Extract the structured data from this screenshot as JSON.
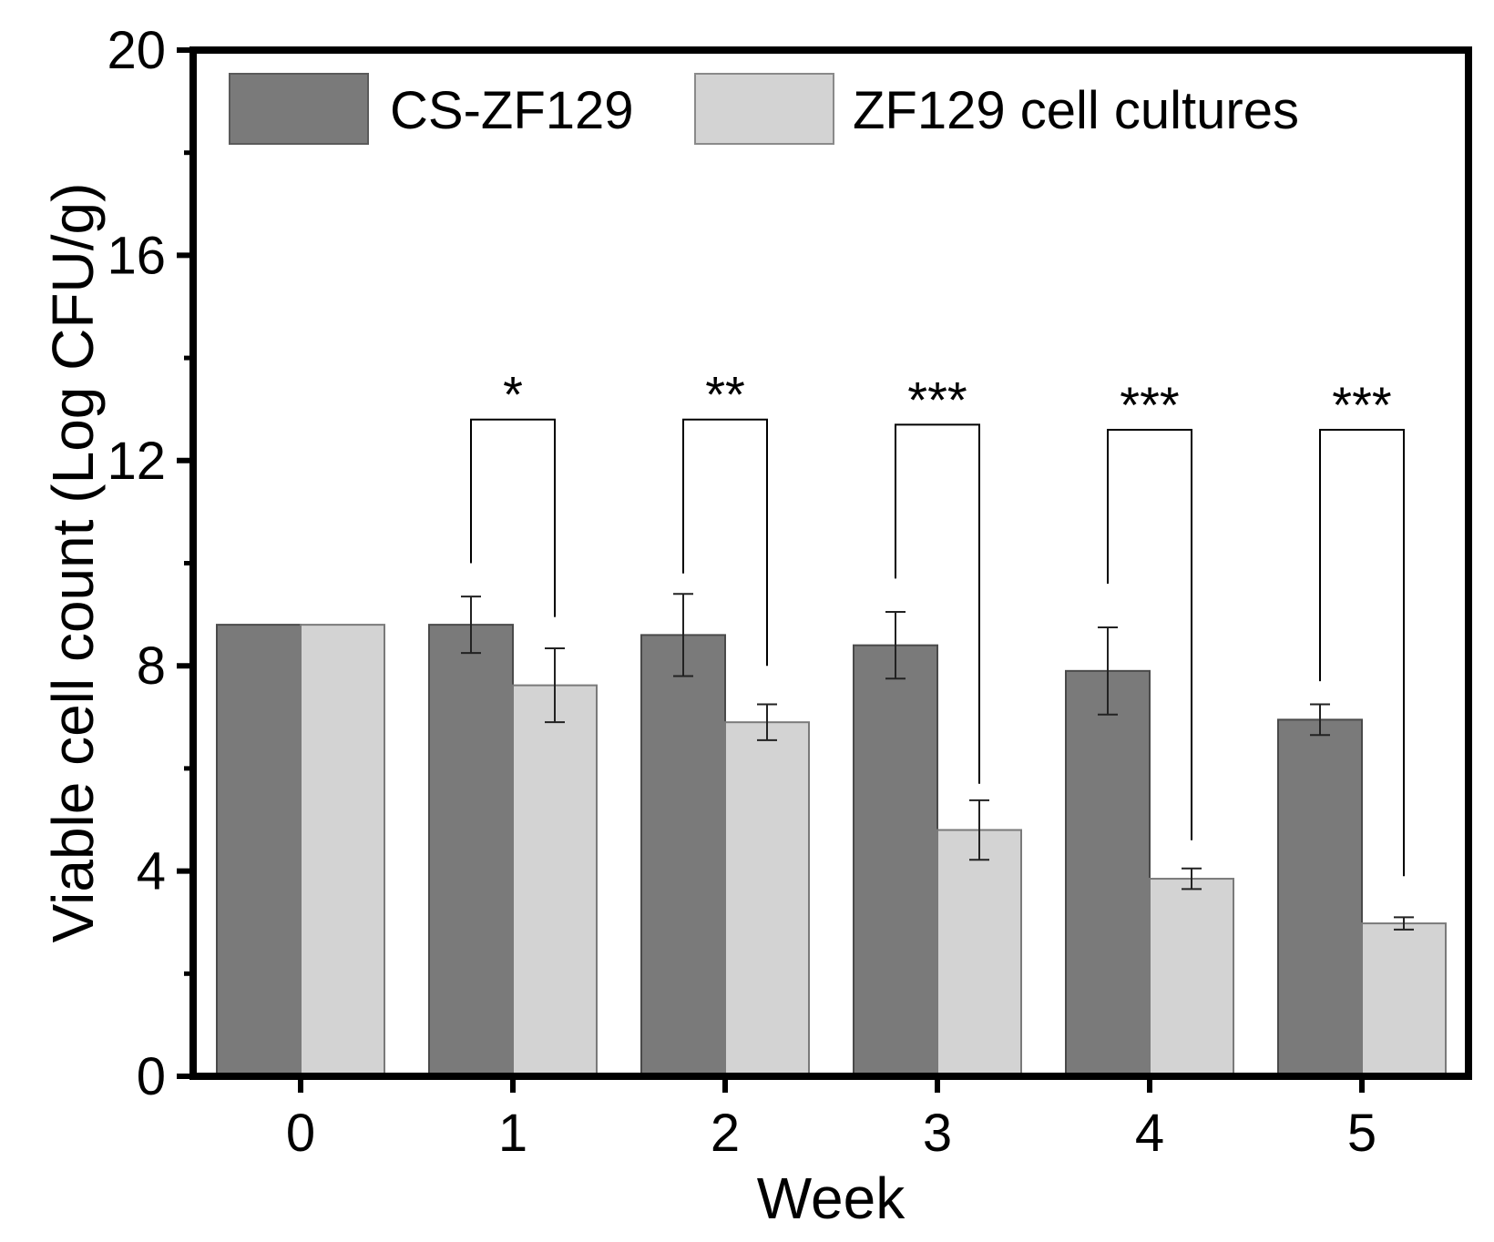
{
  "chart_data": {
    "type": "bar",
    "title": "",
    "xlabel": "Week",
    "ylabel": "Viable cell count (Log CFU/g)",
    "ylim": [
      0,
      20
    ],
    "yticks": [
      "0",
      "4",
      "8",
      "12",
      "16",
      "20"
    ],
    "categories": [
      "0",
      "1",
      "2",
      "3",
      "4",
      "5"
    ],
    "legend_position": "top-left",
    "series": [
      {
        "name": "CS-ZF129",
        "color": "#7a7a7a",
        "values": [
          8.8,
          8.8,
          8.6,
          8.4,
          7.9,
          6.95
        ],
        "errors": [
          0,
          0.55,
          0.8,
          0.65,
          0.85,
          0.3
        ]
      },
      {
        "name": "ZF129 cell cultures",
        "color": "#d3d3d3",
        "values": [
          8.8,
          7.62,
          6.9,
          4.8,
          3.85,
          2.98
        ],
        "errors": [
          0,
          0.72,
          0.35,
          0.58,
          0.2,
          0.12
        ]
      }
    ],
    "significance": [
      {
        "category": "1",
        "label": "*",
        "bracket_y": 12.8,
        "left_y": 10.0,
        "right_y": 8.95
      },
      {
        "category": "2",
        "label": "**",
        "bracket_y": 12.8,
        "left_y": 9.8,
        "right_y": 8.0
      },
      {
        "category": "3",
        "label": "***",
        "bracket_y": 12.7,
        "left_y": 9.7,
        "right_y": 5.7
      },
      {
        "category": "4",
        "label": "***",
        "bracket_y": 12.6,
        "left_y": 9.6,
        "right_y": 4.6
      },
      {
        "category": "5",
        "label": "***",
        "bracket_y": 12.6,
        "left_y": 7.7,
        "right_y": 3.9
      }
    ]
  }
}
